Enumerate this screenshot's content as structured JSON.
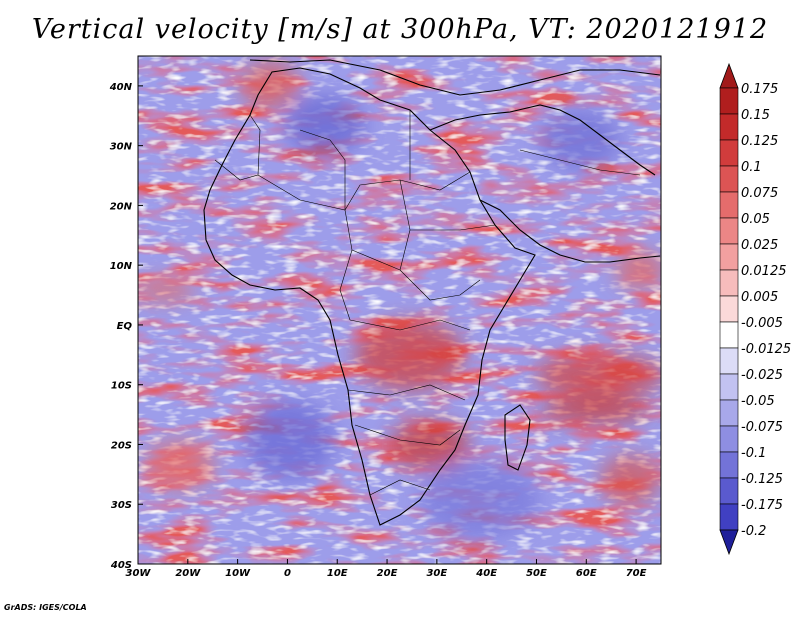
{
  "title": "Vertical velocity [m/s] at 300hPa, VT: 2020121912",
  "map": {
    "variable": "Vertical velocity",
    "units": "m/s",
    "level": "300hPa",
    "valid_time": "2020121912",
    "lon_range": [
      -30,
      75
    ],
    "lat_range": [
      -40,
      45
    ],
    "lon_ticks": [
      {
        "value": -30,
        "label": "30W"
      },
      {
        "value": -20,
        "label": "20W"
      },
      {
        "value": -10,
        "label": "10W"
      },
      {
        "value": 0,
        "label": "0"
      },
      {
        "value": 10,
        "label": "10E"
      },
      {
        "value": 20,
        "label": "20E"
      },
      {
        "value": 30,
        "label": "30E"
      },
      {
        "value": 40,
        "label": "40E"
      },
      {
        "value": 50,
        "label": "50E"
      },
      {
        "value": 60,
        "label": "60E"
      },
      {
        "value": 70,
        "label": "70E"
      }
    ],
    "lat_ticks": [
      {
        "value": 40,
        "label": "40N"
      },
      {
        "value": 30,
        "label": "30N"
      },
      {
        "value": 20,
        "label": "20N"
      },
      {
        "value": 10,
        "label": "10N"
      },
      {
        "value": 0,
        "label": "EQ"
      },
      {
        "value": -10,
        "label": "10S"
      },
      {
        "value": -20,
        "label": "20S"
      },
      {
        "value": -30,
        "label": "30S"
      },
      {
        "value": -40,
        "label": "40S"
      }
    ]
  },
  "colorbar": {
    "levels": [
      {
        "label": "0.175",
        "color": "#b01e1e"
      },
      {
        "label": "0.15",
        "color": "#c32a2a"
      },
      {
        "label": "0.125",
        "color": "#d13c3c"
      },
      {
        "label": "0.1",
        "color": "#dc5454"
      },
      {
        "label": "0.075",
        "color": "#e56c6c"
      },
      {
        "label": "0.05",
        "color": "#ec8686"
      },
      {
        "label": "0.025",
        "color": "#f2a0a0"
      },
      {
        "label": "0.0125",
        "color": "#f7bcbc"
      },
      {
        "label": "0.005",
        "color": "#fbd9d9"
      },
      {
        "label": "-0.005",
        "color": "#ffffff"
      },
      {
        "label": "-0.0125",
        "color": "#dcdcf7"
      },
      {
        "label": "-0.025",
        "color": "#c2c2f1"
      },
      {
        "label": "-0.05",
        "color": "#a8a8ea"
      },
      {
        "label": "-0.075",
        "color": "#8e8ee2"
      },
      {
        "label": "-0.1",
        "color": "#7373d8"
      },
      {
        "label": "-0.125",
        "color": "#5a5ace"
      },
      {
        "label": "-0.175",
        "color": "#4040c2"
      },
      {
        "label": "-0.2",
        "color": "#2a2aa6"
      }
    ],
    "top_triangle_color": "#a11a1a",
    "bottom_triangle_color": "#1f1f9a"
  },
  "credit": "GrADS: IGES/COLA"
}
